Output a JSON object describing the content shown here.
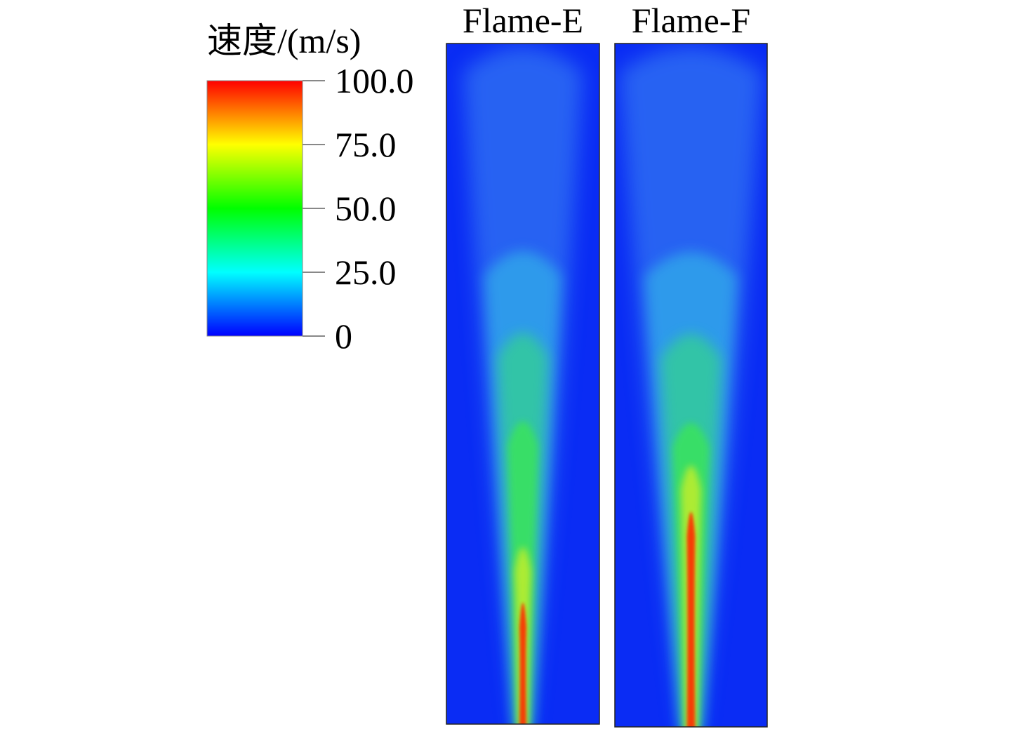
{
  "colorbar": {
    "title": "速度/(m/s)",
    "range": [
      0,
      100
    ],
    "ticks": [
      0,
      {
        "value": 25,
        "label": "25.0"
      },
      {
        "value": 50,
        "label": "50.0"
      },
      {
        "value": 75,
        "label": "75.0"
      },
      {
        "value": 100,
        "label": "100.0"
      }
    ],
    "colors": [
      "#0000ff",
      "#00ffff",
      "#00ff00",
      "#ffff00",
      "#ff0000"
    ]
  },
  "panels": [
    {
      "label": "Flame-E"
    },
    {
      "label": "Flame-F"
    }
  ]
}
